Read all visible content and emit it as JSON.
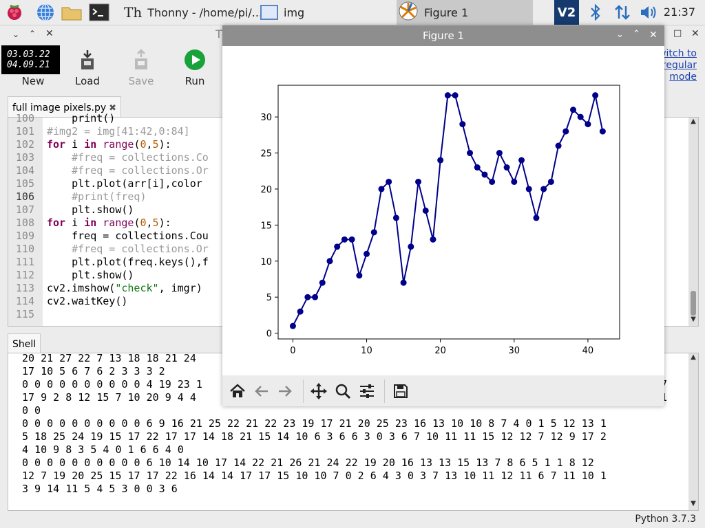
{
  "taskbar": {
    "launchers": [
      "raspberry-menu-icon",
      "globe-icon",
      "folder-icon",
      "terminal-icon"
    ],
    "tasks": [
      {
        "label": "Thonny  -  /home/pi/...",
        "icon": "thonny-icon"
      },
      {
        "label": "img",
        "icon": "window-icon"
      },
      {
        "label": "Figure 1",
        "icon": "matplotlib-icon"
      }
    ],
    "clock": "21:37"
  },
  "thonny": {
    "title_fragment": "T",
    "thumb_lines": [
      "03.03.22",
      "04.09.21"
    ],
    "toolbar": {
      "new": "New",
      "load": "Load",
      "save": "Save",
      "run": "Run"
    },
    "switch_mode": [
      "witch to",
      "regular",
      "mode"
    ],
    "tab_label": "full image  pixels.py",
    "editor": {
      "lines": [
        {
          "n": "100",
          "code": "    print()"
        },
        {
          "n": "101",
          "code": "#img2 = img[41:42,0:84]"
        },
        {
          "n": "102",
          "code": "for i in range(0,5):"
        },
        {
          "n": "103",
          "code": "    #freq = collections.Co"
        },
        {
          "n": "104",
          "code": "    #freq = collections.Or"
        },
        {
          "n": "105",
          "code": "    plt.plot(arr[i],color"
        },
        {
          "n": "106",
          "code": "    #print(freq)"
        },
        {
          "n": "107",
          "code": "    plt.show()"
        },
        {
          "n": "108",
          "code": "for i in range(0,5):"
        },
        {
          "n": "109",
          "code": "    freq = collections.Cou"
        },
        {
          "n": "110",
          "code": "    #freq = collections.Or"
        },
        {
          "n": "111",
          "code": "    plt.plot(freq.keys(),f"
        },
        {
          "n": "112",
          "code": "    plt.show()"
        },
        {
          "n": "113",
          "code": "cv2.imshow(\"check\", imgr)"
        },
        {
          "n": "114",
          "code": "cv2.waitKey()"
        },
        {
          "n": "115",
          "code": ""
        }
      ]
    },
    "shell_tab": "Shell",
    "shell_lines": [
      "20 21 27 22 7 13 18 18 21 24",
      "17 10 5 6 7 6 2 3 3 3 2",
      "0 0 0 0 0 0 0 0 0 0 4 19 23 1",
      "17 9 2 8 12 15 7 10 20 9 4 4",
      "0 0",
      "0 0 0 0 0 0 0 0 0 0 6 9 16 21 25 22 21 22 23 19 17 21 20 25 23 16 13 10 10 8 7 4 0 1 5 12 13 1",
      "5 18 25 24 19 15 17 22 17 17 14 18 21 15 14 10 6 3 6 6 3 0 3 6 7 10 11 11 15 12 12 7 12 9 17 2",
      "4 10 9 8 3 5 4 0 1 6 6 4 0",
      "0 0 0 0 0 0 0 0 0 0 6 10 14 10 17 14 22 21 26 21 24 22 19 20 16 13 13 15 13 7 8 6 5 1 1 8 12",
      "12 7 19 20 25 15 17 17 22 16 14 14 17 17 15 10 10 7 0 2 6 4 3 0 3 7 13 10 11 12 11 6 7 11 10 1",
      "3 9 14 11 5 4 5 3 0 0 3 6"
    ],
    "shell_right_fragments": [
      "7",
      "1"
    ],
    "status": "Python 3.7.3"
  },
  "figure": {
    "title": "Figure 1",
    "toolbar_icons": [
      "home-icon",
      "back-icon",
      "forward-icon",
      "pan-icon",
      "zoom-icon",
      "configure-icon",
      "save-icon"
    ]
  },
  "chart_data": {
    "type": "line",
    "title": "",
    "xlabel": "",
    "ylabel": "",
    "xlim": [
      -2,
      44.3
    ],
    "ylim": [
      -0.8,
      34.4
    ],
    "xticks": [
      0,
      10,
      20,
      30,
      40
    ],
    "yticks": [
      0,
      5,
      10,
      15,
      20,
      25,
      30
    ],
    "color": "#00008b",
    "series": [
      {
        "x": [
          0,
          1,
          2,
          3,
          4,
          5,
          6,
          7,
          8,
          9,
          10,
          11,
          12,
          13,
          14,
          15,
          16,
          17,
          18,
          19,
          20,
          21,
          22,
          23,
          24,
          25,
          26,
          27,
          28,
          29,
          30,
          31,
          32,
          33,
          34,
          35,
          36,
          37,
          38,
          39,
          40,
          41,
          42
        ],
        "values": [
          1,
          3,
          5,
          5,
          7,
          10,
          12,
          13,
          13,
          8,
          11,
          14,
          20,
          21,
          16,
          7,
          12,
          21,
          17,
          13,
          24,
          33,
          33,
          29,
          25,
          23,
          22,
          21,
          25,
          23,
          21,
          24,
          20,
          16,
          20,
          21,
          26,
          28,
          31,
          30,
          29,
          33,
          28
        ]
      }
    ]
  }
}
